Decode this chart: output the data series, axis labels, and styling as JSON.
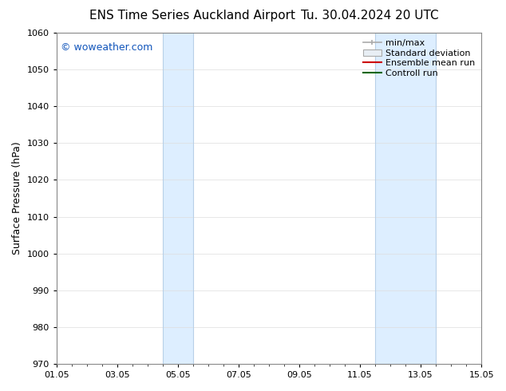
{
  "title_left": "ENS Time Series Auckland Airport",
  "title_right": "Tu. 30.04.2024 20 UTC",
  "ylabel": "Surface Pressure (hPa)",
  "ylim": [
    970,
    1060
  ],
  "yticks": [
    970,
    980,
    990,
    1000,
    1010,
    1020,
    1030,
    1040,
    1050,
    1060
  ],
  "xlim_num": [
    0,
    14
  ],
  "xtick_labels": [
    "01.05",
    "03.05",
    "05.05",
    "07.05",
    "09.05",
    "11.05",
    "13.05",
    "15.05"
  ],
  "xtick_positions": [
    0,
    2,
    4,
    6,
    8,
    10,
    12,
    14
  ],
  "shaded_bands": [
    {
      "xmin": 3.5,
      "xmax": 4.5
    },
    {
      "xmin": 10.5,
      "xmax": 12.5
    }
  ],
  "band_color": "#ddeeff",
  "band_edge_color": "#b8d0e8",
  "watermark_text": "© woweather.com",
  "watermark_color": "#1155bb",
  "legend_labels": [
    "min/max",
    "Standard deviation",
    "Ensemble mean run",
    "Controll run"
  ],
  "legend_colors_line": [
    "#aaaaaa",
    "#ccddee",
    "#cc0000",
    "#006600"
  ],
  "bg_color": "#ffffff",
  "grid_color": "#dddddd",
  "title_fontsize": 11,
  "axis_label_fontsize": 9,
  "tick_fontsize": 8,
  "legend_fontsize": 8
}
